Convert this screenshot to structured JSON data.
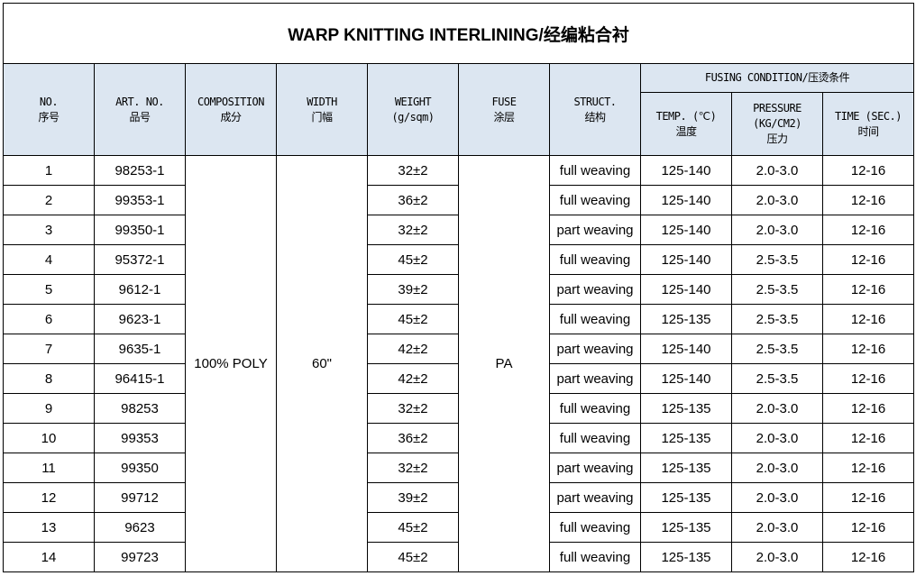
{
  "title": "WARP KNITTING INTERLINING/经编粘合衬",
  "headers": {
    "no": [
      "NO.",
      "序号"
    ],
    "art": [
      "ART. NO.",
      "品号"
    ],
    "composition": [
      "COMPOSITION",
      "成分"
    ],
    "width": [
      "WIDTH",
      "门幅"
    ],
    "weight": [
      "WEIGHT",
      "(g/sqm)"
    ],
    "fuse": [
      "FUSE",
      "涂层"
    ],
    "struct": [
      "STRUCT.",
      "结构"
    ],
    "fusing": "FUSING CONDITION/压烫条件",
    "temp": [
      "TEMP. (℃)",
      "温度"
    ],
    "pressure": [
      "PRESSURE",
      "(KG/CM2)",
      "压力"
    ],
    "time": [
      "TIME  (SEC.)",
      "时间"
    ]
  },
  "shared": {
    "composition": "100% POLY",
    "width": "60\"",
    "fuse": "PA"
  },
  "header_bg": "#dce6f1",
  "rows": [
    [
      "1",
      "98253-1",
      "32±2",
      "full weaving",
      "125-140",
      "2.0-3.0",
      "12-16"
    ],
    [
      "2",
      "99353-1",
      "36±2",
      "full weaving",
      "125-140",
      "2.0-3.0",
      "12-16"
    ],
    [
      "3",
      "99350-1",
      "32±2",
      "part weaving",
      "125-140",
      "2.0-3.0",
      "12-16"
    ],
    [
      "4",
      "95372-1",
      "45±2",
      "full weaving",
      "125-140",
      "2.5-3.5",
      "12-16"
    ],
    [
      "5",
      "9612-1",
      "39±2",
      "part weaving",
      "125-140",
      "2.5-3.5",
      "12-16"
    ],
    [
      "6",
      "9623-1",
      "45±2",
      "full weaving",
      "125-135",
      "2.5-3.5",
      "12-16"
    ],
    [
      "7",
      "9635-1",
      "42±2",
      "part weaving",
      "125-140",
      "2.5-3.5",
      "12-16"
    ],
    [
      "8",
      "96415-1",
      "42±2",
      "part weaving",
      "125-140",
      "2.5-3.5",
      "12-16"
    ],
    [
      "9",
      "98253",
      "32±2",
      "full weaving",
      "125-135",
      "2.0-3.0",
      "12-16"
    ],
    [
      "10",
      "99353",
      "36±2",
      "full weaving",
      "125-135",
      "2.0-3.0",
      "12-16"
    ],
    [
      "11",
      "99350",
      "32±2",
      "part weaving",
      "125-135",
      "2.0-3.0",
      "12-16"
    ],
    [
      "12",
      "99712",
      "39±2",
      "part weaving",
      "125-135",
      "2.0-3.0",
      "12-16"
    ],
    [
      "13",
      "9623",
      "45±2",
      "full weaving",
      "125-135",
      "2.0-3.0",
      "12-16"
    ],
    [
      "14",
      "99723",
      "45±2",
      "full weaving",
      "125-135",
      "2.0-3.0",
      "12-16"
    ]
  ]
}
